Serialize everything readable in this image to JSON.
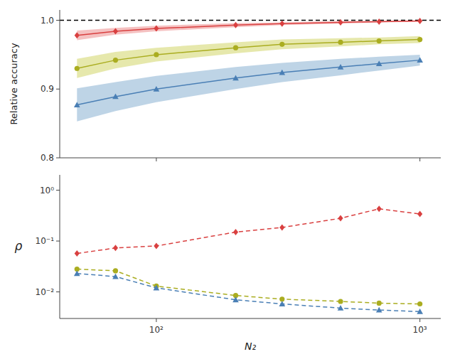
{
  "chart_data": [
    {
      "type": "line",
      "ylabel": "Relative accuracy",
      "log": "x",
      "x": [
        50,
        70,
        100,
        200,
        300,
        500,
        700,
        1000
      ],
      "xlim": [
        43,
        1200
      ],
      "ylim": [
        0.8,
        1.015
      ],
      "xticks": [
        100,
        1000
      ],
      "yticks": [
        0.8,
        0.9,
        {
          "value": 1.0,
          "label": "1.0"
        }
      ],
      "tick_labels": "y",
      "grid": false,
      "reference_y": 1.0,
      "series": [
        {
          "color": "#d94040",
          "marker": "diamond",
          "line_style": "solid",
          "band_color": "#f0a0a0",
          "values": [
            0.978,
            0.984,
            0.988,
            0.993,
            0.995,
            0.997,
            0.998,
            0.999
          ],
          "lo": [
            0.971,
            0.979,
            0.984,
            0.99,
            0.993,
            0.995,
            0.997,
            0.998
          ],
          "hi": [
            0.985,
            0.989,
            0.992,
            0.996,
            0.997,
            0.999,
            0.999,
            0.9995
          ]
        },
        {
          "color": "#aaad20",
          "marker": "circle",
          "line_style": "solid",
          "band_color": "#d8db80",
          "values": [
            0.93,
            0.942,
            0.95,
            0.96,
            0.965,
            0.968,
            0.97,
            0.972
          ],
          "lo": [
            0.916,
            0.93,
            0.94,
            0.952,
            0.958,
            0.962,
            0.965,
            0.967
          ],
          "hi": [
            0.944,
            0.954,
            0.96,
            0.968,
            0.972,
            0.974,
            0.975,
            0.977
          ]
        },
        {
          "color": "#4a7fb5",
          "marker": "triangle",
          "line_style": "solid",
          "band_color": "#9bbdd8",
          "values": [
            0.877,
            0.889,
            0.9,
            0.916,
            0.924,
            0.932,
            0.937,
            0.942
          ],
          "lo": [
            0.853,
            0.868,
            0.881,
            0.9,
            0.91,
            0.92,
            0.927,
            0.934
          ],
          "hi": [
            0.901,
            0.91,
            0.919,
            0.932,
            0.938,
            0.944,
            0.947,
            0.95
          ]
        }
      ]
    },
    {
      "type": "line",
      "xlabel": "N₂",
      "ylabel": "ρ",
      "log": true,
      "x": [
        50,
        70,
        100,
        200,
        300,
        500,
        700,
        1000
      ],
      "xlim": [
        43,
        1200
      ],
      "ylim": [
        0.003,
        2.0
      ],
      "xticks": [
        {
          "value": 100,
          "label": "10²"
        },
        {
          "value": 1000,
          "label": "10³"
        }
      ],
      "yticks": [
        {
          "value": 0.01,
          "label": "10⁻²"
        },
        {
          "value": 0.1,
          "label": "10⁻¹"
        },
        {
          "value": 1.0,
          "label": "10⁰"
        }
      ],
      "grid": false,
      "series": [
        {
          "color": "#d94040",
          "marker": "diamond",
          "line_style": "dashed",
          "values": [
            0.057,
            0.073,
            0.08,
            0.15,
            0.185,
            0.28,
            0.43,
            0.34
          ]
        },
        {
          "color": "#aaad20",
          "marker": "circle",
          "line_style": "dashed",
          "values": [
            0.028,
            0.026,
            0.013,
            0.0085,
            0.0072,
            0.0065,
            0.006,
            0.0058
          ]
        },
        {
          "color": "#4a7fb5",
          "marker": "triangle",
          "line_style": "dashed",
          "values": [
            0.023,
            0.02,
            0.012,
            0.007,
            0.0058,
            0.0048,
            0.0044,
            0.0041
          ]
        }
      ]
    }
  ]
}
